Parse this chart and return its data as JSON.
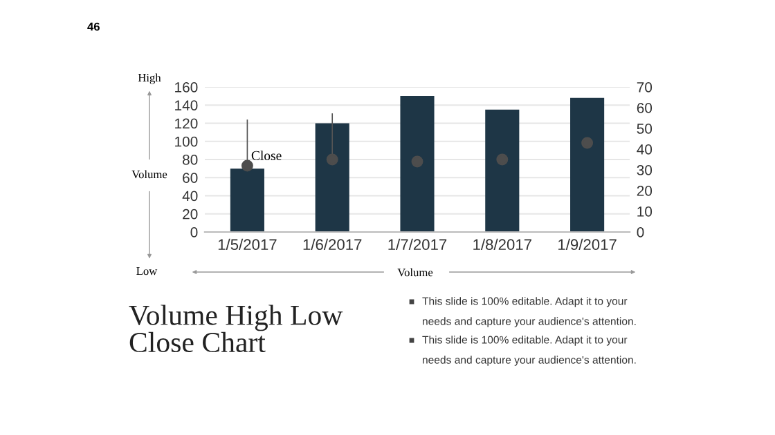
{
  "chart_data": {
    "type": "bar",
    "title": "Volume High Low\nClose Chart",
    "ylabel": "Volume",
    "xlabel": "Volume",
    "categories": [
      "1/5/2017",
      "1/6/2017",
      "1/7/2017",
      "1/8/2017",
      "1/9/2017"
    ],
    "series": [
      {
        "color": "#1e3646",
        "values": [
          70,
          120,
          150,
          135,
          148
        ]
      },
      {
        "type": "scatter",
        "axis": "y2",
        "color": "#4d4d4d",
        "values": [
          32,
          35,
          34,
          35,
          43
        ],
        "errors": [
          [
            32,
            54
          ],
          [
            35,
            57
          ],
          null,
          null,
          null
        ]
      }
    ],
    "ylim": [
      0,
      160
    ],
    "yticks": [
      0,
      20,
      40,
      60,
      80,
      100,
      120,
      140,
      160
    ],
    "y2lim": [
      0,
      70
    ],
    "y2ticks": [
      0,
      10,
      20,
      30,
      40,
      50,
      60,
      70
    ],
    "grid": "y",
    "marker": "circle",
    "legend": false,
    "annotations": [
      "Close",
      "46",
      "High",
      "Low",
      "This slide is 100% editable. Adapt it to your\nneeds and capture your audience's attention.",
      "This slide is 100% editable. Adapt it to your\nneeds and capture your audience's attention."
    ]
  }
}
